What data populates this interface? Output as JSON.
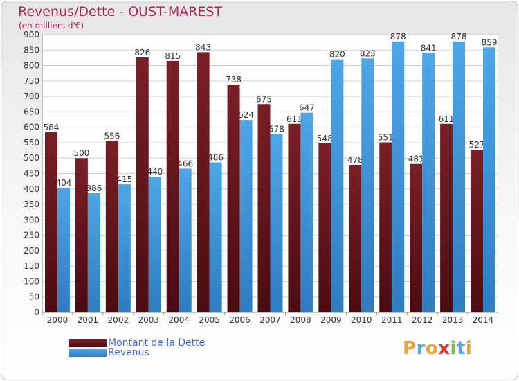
{
  "colors": {
    "dette": "#7a1f26",
    "revenus": "#4ea6e6",
    "title": "#b0275f",
    "legend_text": "#4466ee"
  },
  "chart_data": {
    "type": "bar",
    "title": "Revenus/Dette - OUST-MAREST",
    "subtitle": "(en milliers d'€)",
    "categories": [
      "2000",
      "2001",
      "2002",
      "2003",
      "2004",
      "2005",
      "2006",
      "2007",
      "2008",
      "2009",
      "2010",
      "2011",
      "2012",
      "2013",
      "2014"
    ],
    "series": [
      {
        "name": "Montant de la Dette",
        "values": [
          584,
          500,
          556,
          826,
          815,
          843,
          738,
          675,
          611,
          548,
          478,
          551,
          481,
          611,
          527
        ]
      },
      {
        "name": "Revenus",
        "values": [
          404,
          386,
          415,
          440,
          466,
          486,
          624,
          578,
          647,
          820,
          823,
          878,
          841,
          878,
          859
        ]
      }
    ],
    "yticks": [
      0,
      50,
      100,
      150,
      200,
      250,
      300,
      350,
      400,
      450,
      500,
      550,
      600,
      650,
      700,
      750,
      800,
      850,
      900
    ],
    "ylim": [
      0,
      900
    ],
    "grid": true,
    "legend_position": "bottom-left"
  },
  "logo": {
    "text": "Proxiti",
    "letter_colors": [
      "#e8a23a",
      "#5aa8d8",
      "#e8a23a",
      "#d93a3a",
      "#7bbf4a",
      "#5aa8d8",
      "#e8a23a"
    ]
  }
}
